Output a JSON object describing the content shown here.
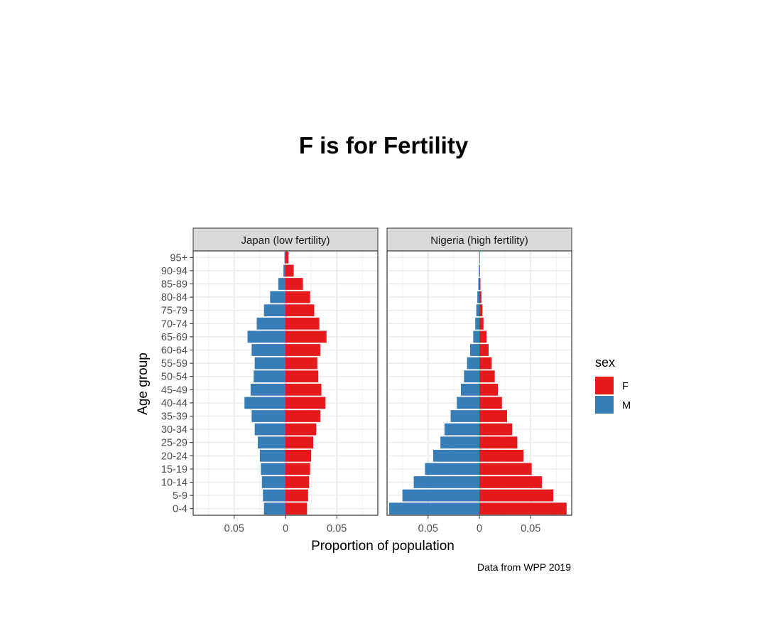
{
  "chart_data": {
    "type": "bar",
    "orientation": "horizontal",
    "title": "F is for Fertility",
    "caption": "Data from WPP 2019",
    "xlabel": "Proportion of population",
    "ylabel": "Age group",
    "xlim": [
      -0.09,
      0.09
    ],
    "x_ticks": [
      -0.05,
      0,
      0.05
    ],
    "x_tick_labels": [
      "0.05",
      "0",
      "0.05"
    ],
    "categories": [
      "0-4",
      "5-9",
      "10-14",
      "15-19",
      "20-24",
      "25-29",
      "30-34",
      "35-39",
      "40-44",
      "45-49",
      "50-54",
      "55-59",
      "60-64",
      "65-69",
      "70-74",
      "75-79",
      "80-84",
      "85-89",
      "90-94",
      "95+"
    ],
    "legend": {
      "title": "sex",
      "position": "right",
      "entries": [
        {
          "label": "F",
          "color": "#E41A1C"
        },
        {
          "label": "M",
          "color": "#377EB8"
        }
      ]
    },
    "grid": true,
    "panels": [
      {
        "label": "Japan (low fertility)",
        "series": [
          {
            "name": "F",
            "color": "#E41A1C",
            "values": [
              0.021,
              0.022,
              0.023,
              0.024,
              0.025,
              0.027,
              0.03,
              0.034,
              0.039,
              0.035,
              0.032,
              0.031,
              0.034,
              0.04,
              0.033,
              0.028,
              0.024,
              0.017,
              0.008,
              0.003
            ]
          },
          {
            "name": "M",
            "color": "#377EB8",
            "values": [
              0.021,
              0.022,
              0.023,
              0.024,
              0.025,
              0.027,
              0.03,
              0.033,
              0.04,
              0.034,
              0.031,
              0.03,
              0.033,
              0.037,
              0.028,
              0.021,
              0.015,
              0.007,
              0.002,
              0.001
            ]
          }
        ]
      },
      {
        "label": "Nigeria (high fertility)",
        "series": [
          {
            "name": "F",
            "color": "#E41A1C",
            "values": [
              0.085,
              0.072,
              0.061,
              0.051,
              0.043,
              0.037,
              0.032,
              0.027,
              0.022,
              0.018,
              0.015,
              0.012,
              0.009,
              0.007,
              0.004,
              0.003,
              0.002,
              0.001,
              0.0005,
              0.0001
            ]
          },
          {
            "name": "M",
            "color": "#377EB8",
            "values": [
              0.088,
              0.075,
              0.064,
              0.053,
              0.045,
              0.038,
              0.034,
              0.028,
              0.022,
              0.018,
              0.015,
              0.012,
              0.009,
              0.006,
              0.004,
              0.003,
              0.002,
              0.001,
              0.0005,
              0.0001
            ]
          }
        ]
      }
    ]
  }
}
